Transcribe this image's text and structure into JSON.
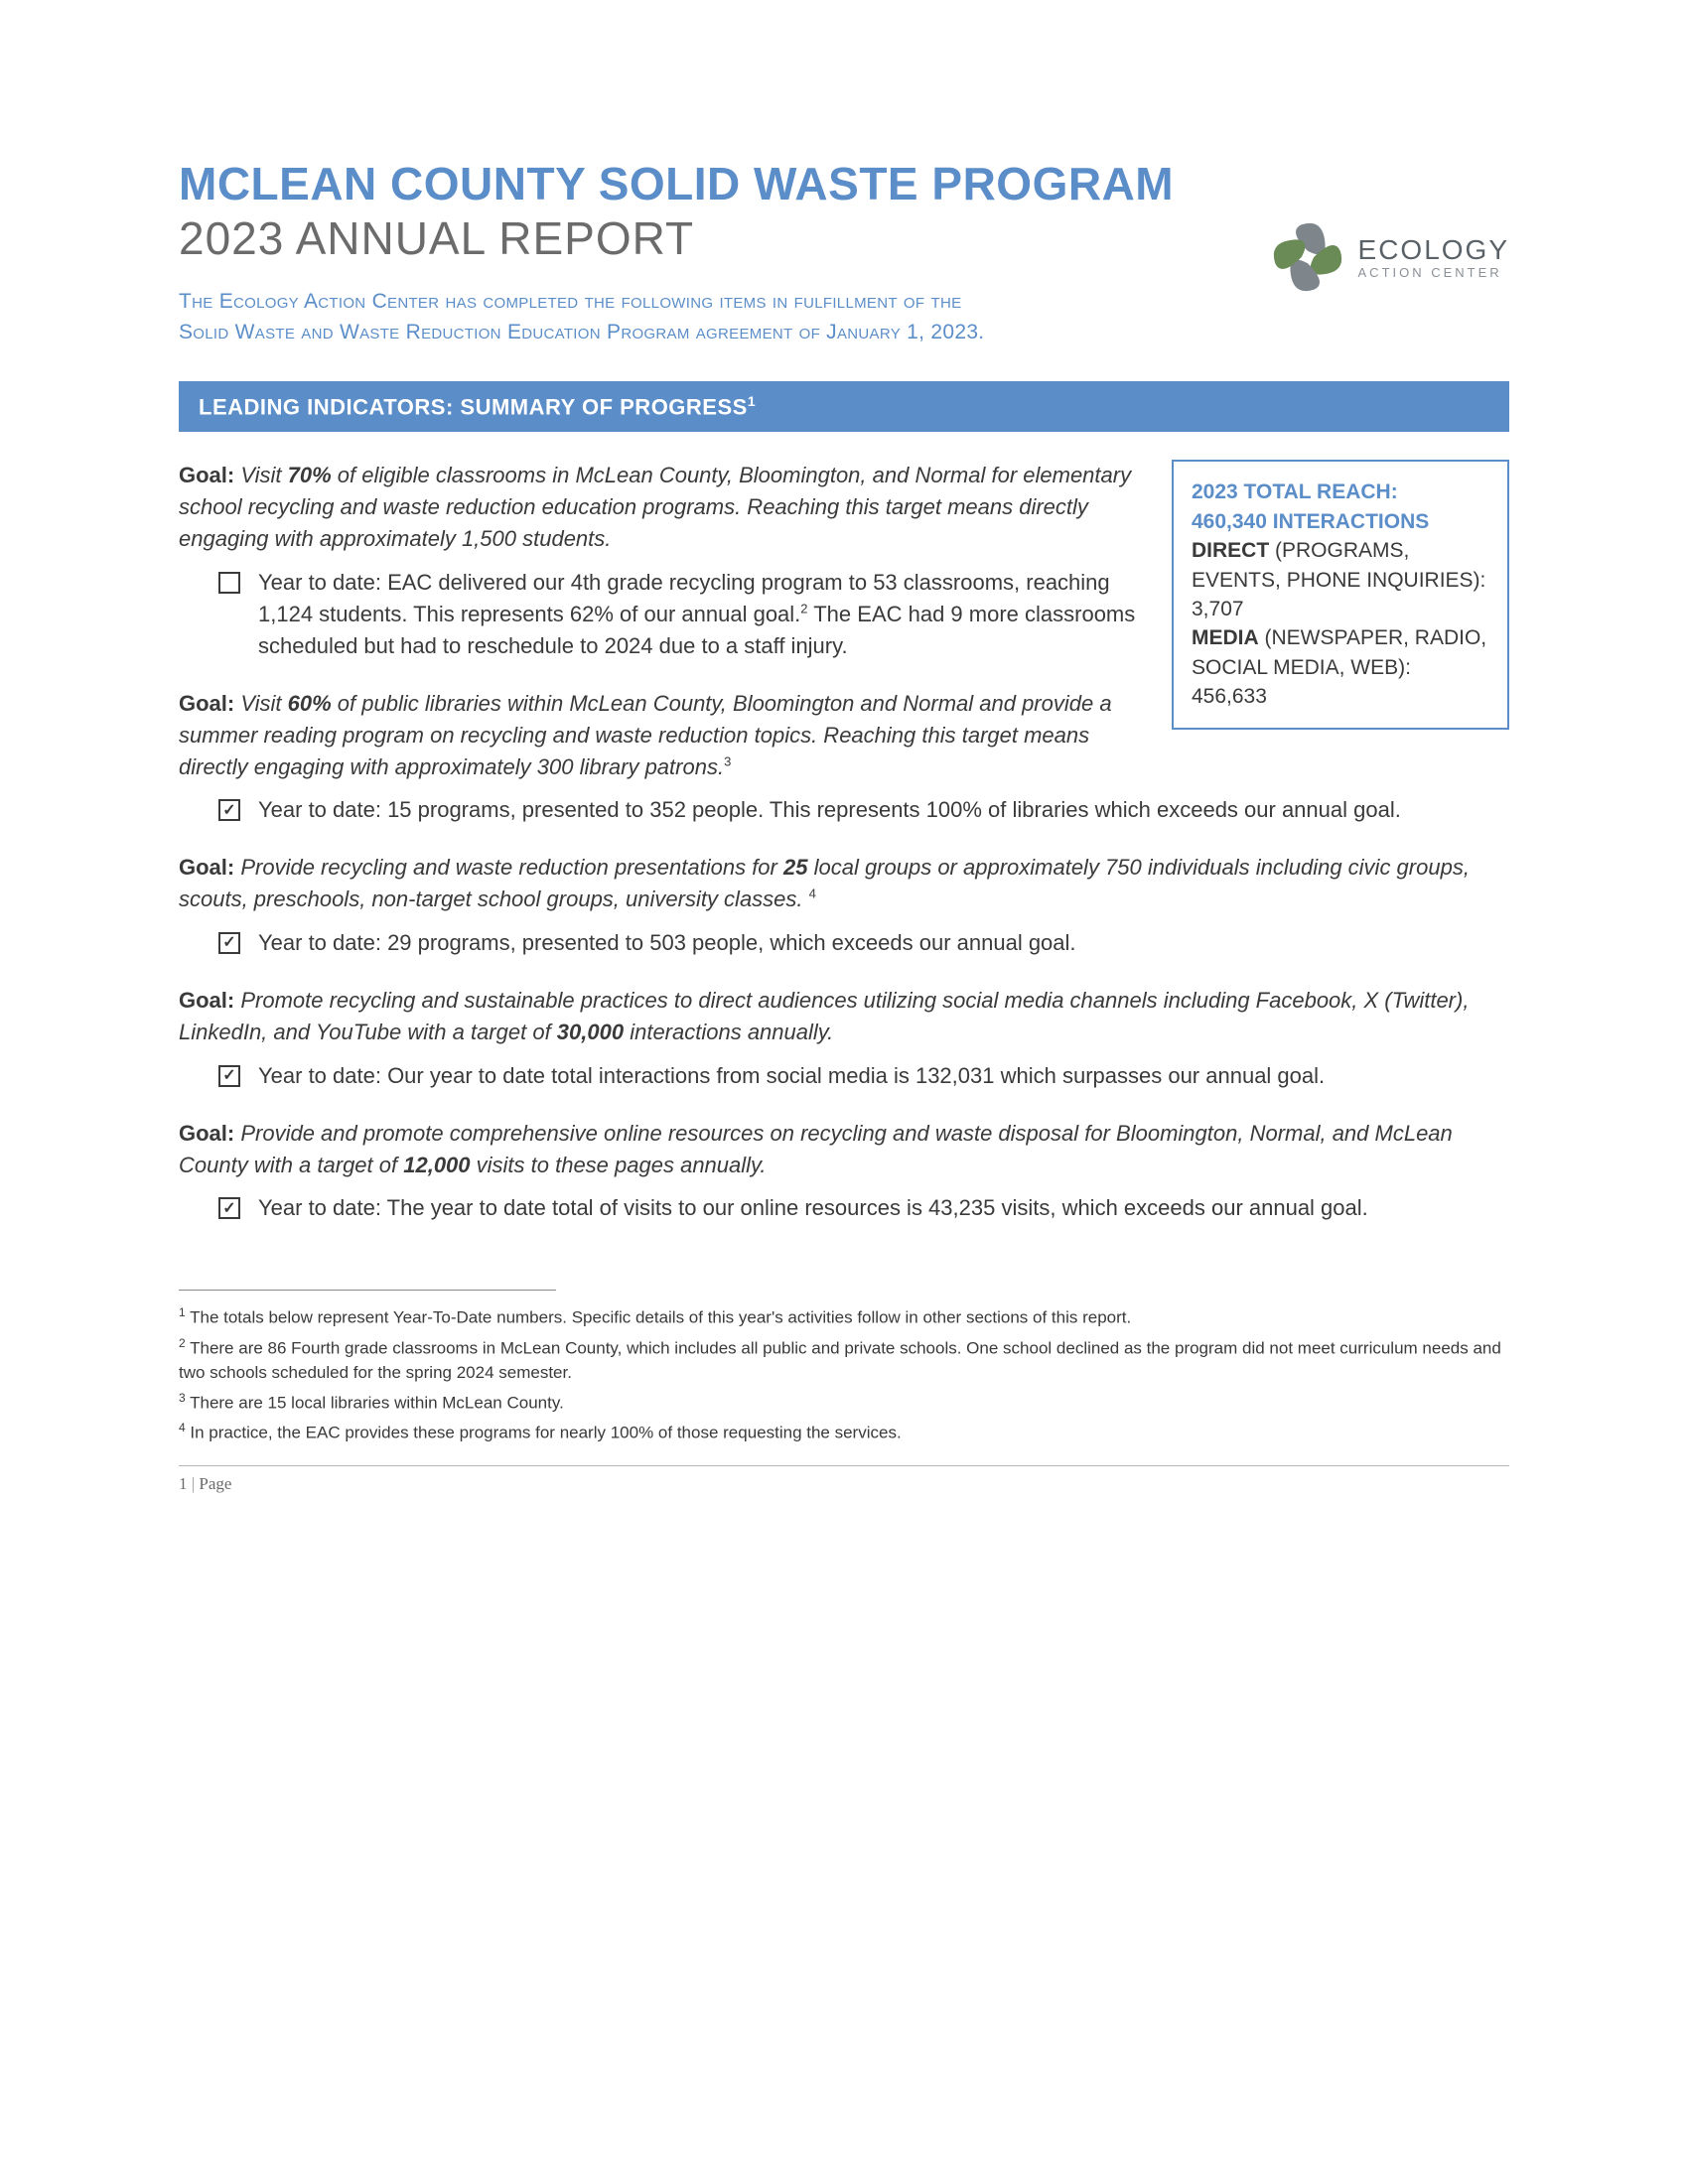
{
  "header": {
    "title_main": "MCLEAN COUNTY SOLID WASTE PROGRAM",
    "title_sub": "2023 ANNUAL REPORT",
    "intro": "The Ecology Action Center has completed the following items in fulfillment of the Solid Waste and Waste Reduction Education Program agreement of January 1, 2023."
  },
  "logo": {
    "brand": "ECOLOGY",
    "tagline": "ACTION CENTER",
    "colors": {
      "petal_green": "#6a8a56",
      "petal_grey": "#7e868c",
      "outline": "#9aa2a8"
    }
  },
  "section_bar": {
    "label": "LEADING INDICATORS: SUMMARY OF PROGRESS",
    "ref": "1",
    "bg": "#5b8dc9",
    "fg": "#ffffff"
  },
  "callout": {
    "title_line1": "2023 TOTAL REACH:",
    "title_line2": "460,340 INTERACTIONS",
    "direct_label": "DIRECT",
    "direct_desc": " (PROGRAMS, EVENTS, PHONE INQUIRIES): 3,707",
    "media_label": "MEDIA",
    "media_desc": " (NEWSPAPER, RADIO, SOCIAL MEDIA, WEB): 456,633",
    "border_color": "#5b8dc9"
  },
  "goals": [
    {
      "label": "Goal:",
      "pre": " Visit ",
      "emph": "70%",
      "post": " of eligible classrooms in McLean County, Bloomington, and Normal for elementary school recycling and waste reduction education programs. Reaching this target means directly engaging with approximately 1,500 students.",
      "ref": "",
      "checked": false,
      "bullet_pre": "Year to date: EAC delivered our 4th grade recycling program to 53 classrooms, reaching 1,124 students. This represents 62% of our annual goal.",
      "bullet_ref": "2",
      "bullet_post": " The EAC had 9 more classrooms scheduled but had to reschedule to 2024 due to a staff injury."
    },
    {
      "label": "Goal:",
      "pre": " Visit ",
      "emph": "60%",
      "post": " of public libraries within McLean County, Bloomington and Normal and provide a summer reading program on recycling and waste reduction topics. Reaching this target means directly engaging with approximately 300 library patrons.",
      "ref": "3",
      "checked": true,
      "bullet_pre": "Year to date: 15 programs, presented to 352 people. This represents 100% of libraries which exceeds our annual goal.",
      "bullet_ref": "",
      "bullet_post": ""
    },
    {
      "label": "Goal:",
      "pre": " Provide recycling and waste reduction presentations for ",
      "emph": "25",
      "post": " local groups or approximately 750 individuals including civic groups, scouts, preschools, non-target school groups, university classes. ",
      "ref": "4",
      "checked": true,
      "bullet_pre": "Year to date: 29 programs, presented to 503 people, which exceeds our annual goal.",
      "bullet_ref": "",
      "bullet_post": ""
    },
    {
      "label": "Goal:",
      "pre": " Promote recycling and sustainable practices to direct audiences utilizing social media channels including Facebook, X (Twitter), LinkedIn, and YouTube with a target of ",
      "emph": "30,000",
      "post": " interactions annually.",
      "ref": "",
      "checked": true,
      "bullet_pre": "Year to date: Our year to date total interactions from social media is 132,031 which surpasses our annual goal.",
      "bullet_ref": "",
      "bullet_post": ""
    },
    {
      "label": "Goal:",
      "pre": " Provide and promote comprehensive online resources on recycling and waste disposal for Bloomington, Normal, and McLean County with a target of ",
      "emph": "12,000",
      "post": " visits to these pages annually.",
      "ref": "",
      "checked": true,
      "bullet_pre": "Year to date: The year to date total of visits to our online resources is 43,235 visits, which exceeds our annual goal.",
      "bullet_ref": "",
      "bullet_post": ""
    }
  ],
  "footnotes": [
    {
      "ref": "1",
      "text": " The totals below represent Year-To-Date numbers.  Specific details of this year's activities follow in other sections of this report."
    },
    {
      "ref": "2",
      "text": " There are 86 Fourth grade classrooms in McLean County, which includes all public and private schools. One school declined as the program did not meet curriculum needs and two schools scheduled for the spring 2024 semester."
    },
    {
      "ref": "3",
      "text": " There are 15 local libraries within McLean County."
    },
    {
      "ref": "4",
      "text": " In practice, the EAC provides these programs for nearly 100% of those requesting the services."
    }
  ],
  "page_footer": {
    "num": "1",
    "label": "Page"
  },
  "colors": {
    "accent_blue": "#5b8dc9",
    "body_text": "#3a3a3a",
    "sub_grey": "#6b6b6b",
    "background": "#ffffff"
  }
}
